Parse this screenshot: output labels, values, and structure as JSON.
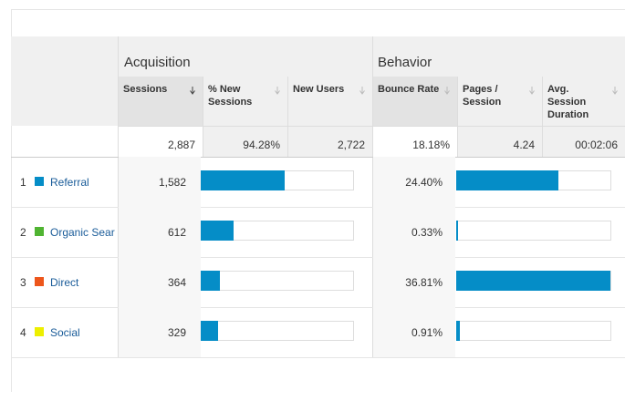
{
  "table": {
    "groups": [
      "Acquisition",
      "Behavior"
    ],
    "columns": [
      "Sessions",
      "% New Sessions",
      "New Users",
      "Bounce Rate",
      "Pages / Session",
      "Avg. Session Duration"
    ],
    "totals": [
      "2,887",
      "94.28%",
      "2,722",
      "18.18%",
      "4.24",
      "00:02:06"
    ],
    "rows": [
      {
        "rank": "1",
        "label": "Referral",
        "color": "#058dc7",
        "sessions": "1,582",
        "bounce_rate": "24.40%"
      },
      {
        "rank": "2",
        "label": "Organic Sear",
        "color": "#50b432",
        "sessions": "612",
        "bounce_rate": "0.33%"
      },
      {
        "rank": "3",
        "label": "Direct",
        "color": "#ed561b",
        "sessions": "364",
        "bounce_rate": "36.81%"
      },
      {
        "rank": "4",
        "label": "Social",
        "color": "#edef00",
        "sessions": "329",
        "bounce_rate": "0.91%"
      }
    ],
    "bar_color": "#058dc7"
  }
}
